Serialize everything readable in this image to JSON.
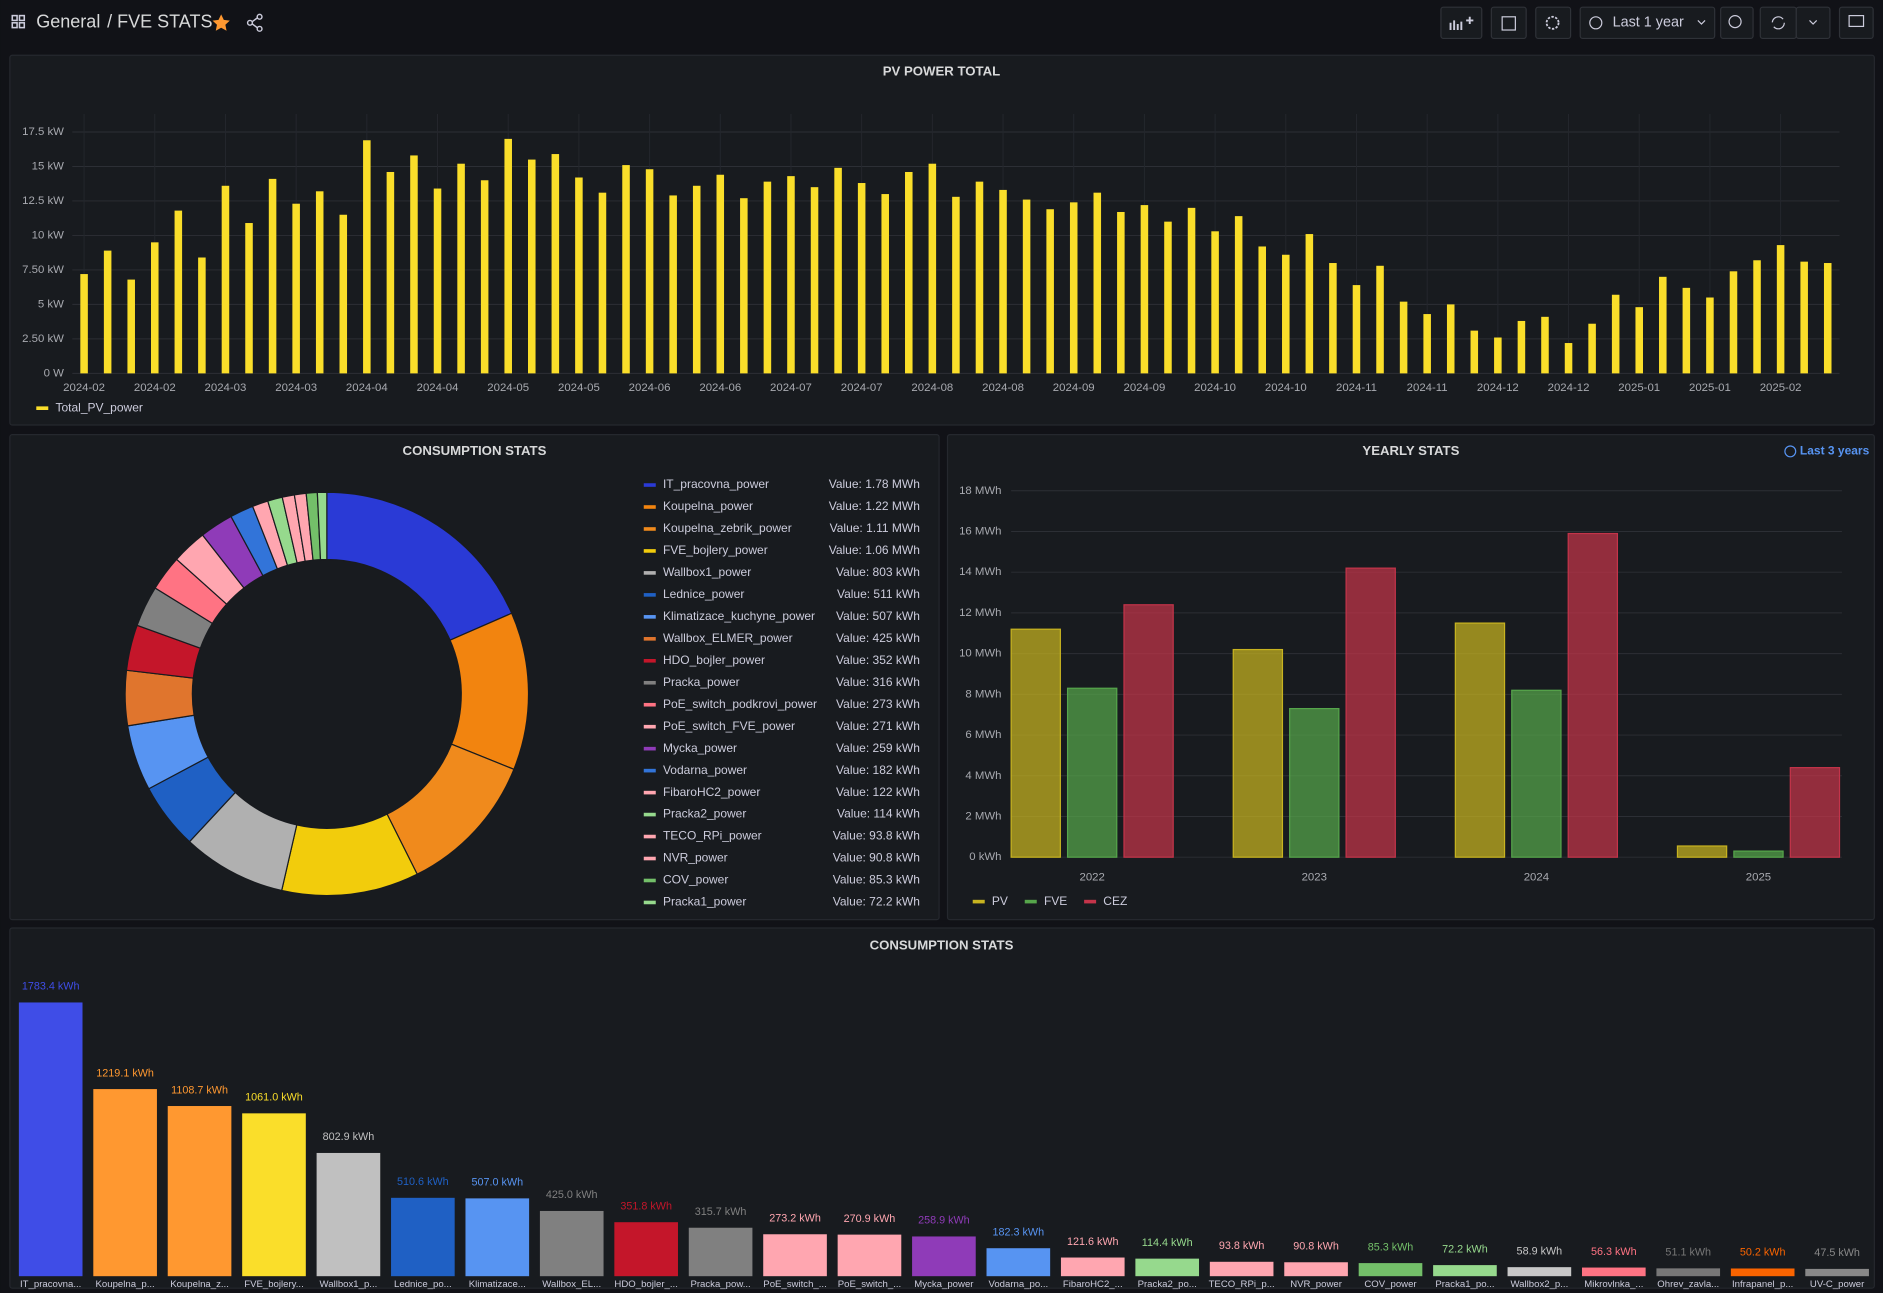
{
  "header": {
    "folder": "General",
    "title": "/ FVE STATS",
    "time_range": "Last 1 year"
  },
  "chart_data": [
    {
      "type": "bar",
      "title": "PV POWER TOTAL",
      "categories": [
        "2024-02",
        null,
        null,
        "2024-02",
        null,
        null,
        "2024-03",
        null,
        null,
        "2024-03",
        null,
        null,
        "2024-04",
        null,
        null,
        "2024-04",
        null,
        null,
        "2024-05",
        null,
        null,
        "2024-05",
        null,
        null,
        "2024-06",
        null,
        null,
        "2024-06",
        null,
        null,
        "2024-07",
        null,
        null,
        "2024-07",
        null,
        null,
        "2024-08",
        null,
        null,
        "2024-08",
        null,
        null,
        "2024-09",
        null,
        null,
        "2024-09",
        null,
        null,
        "2024-10",
        null,
        null,
        "2024-10",
        null,
        null,
        "2024-11",
        null,
        null,
        "2024-11",
        null,
        null,
        "2024-12",
        null,
        null,
        "2024-12",
        null,
        null,
        "2025-01",
        null,
        null,
        "2025-01",
        null,
        null,
        "2025-02",
        null,
        null
      ],
      "series": [
        {
          "name": "Total_PV_power",
          "color": "#fade2a",
          "values": [
            7.2,
            8.9,
            6.8,
            9.5,
            11.8,
            8.4,
            13.6,
            10.9,
            14.1,
            12.3,
            13.2,
            11.5,
            16.9,
            14.6,
            15.8,
            13.4,
            15.2,
            14.0,
            17.0,
            15.5,
            15.9,
            14.2,
            13.1,
            15.1,
            14.8,
            12.9,
            13.6,
            14.4,
            12.7,
            13.9,
            14.3,
            13.5,
            14.9,
            13.8,
            13.0,
            14.6,
            15.2,
            12.8,
            13.9,
            13.3,
            12.6,
            11.9,
            12.4,
            13.1,
            11.7,
            12.2,
            11.0,
            12.0,
            10.3,
            11.4,
            9.2,
            8.6,
            10.1,
            8.0,
            6.4,
            7.8,
            5.2,
            4.3,
            5.0,
            3.1,
            2.6,
            3.8,
            4.1,
            2.2,
            3.6,
            5.7,
            4.8,
            7.0,
            6.2,
            5.5,
            7.4,
            8.2,
            9.3,
            8.1,
            8.0
          ]
        }
      ],
      "ylim": [
        0,
        18.8
      ],
      "yticks": [
        {
          "value": 0,
          "label": "0 W"
        },
        {
          "value": 2.5,
          "label": "2.50 kW"
        },
        {
          "value": 5,
          "label": "5 kW"
        },
        {
          "value": 7.5,
          "label": "7.50 kW"
        },
        {
          "value": 10,
          "label": "10 kW"
        },
        {
          "value": 12.5,
          "label": "12.5 kW"
        },
        {
          "value": 15,
          "label": "15 kW"
        },
        {
          "value": 17.5,
          "label": "17.5 kW"
        }
      ],
      "grid": true
    },
    {
      "type": "pie",
      "title": "CONSUMPTION STATS",
      "donut": true,
      "categories": [
        "IT_pracovna_power",
        "Koupelna_power",
        "Koupelna_zebrik_power",
        "FVE_bojlery_power",
        "Wallbox1_power",
        "Lednice_power",
        "Klimatizace_kuchyne_power",
        "Wallbox_ELMER_power",
        "HDO_bojler_power",
        "Pracka_power",
        "PoE_switch_podkrovi_power",
        "PoE_switch_FVE_power",
        "Mycka_power",
        "Vodarna_power",
        "FibaroHC2_power",
        "Pracka2_power",
        "TECO_RPi_power",
        "NVR_power",
        "COV_power",
        "Pracka1_power"
      ],
      "values": [
        1780,
        1220,
        1110,
        1060,
        803,
        511,
        507,
        425,
        352,
        316,
        273,
        271,
        259,
        182,
        122,
        114,
        93.8,
        90.8,
        85.3,
        72.2
      ],
      "value_labels": [
        "Value: 1.78 MWh",
        "Value: 1.22 MWh",
        "Value: 1.11 MWh",
        "Value: 1.06 MWh",
        "Value: 803 kWh",
        "Value: 511 kWh",
        "Value: 507 kWh",
        "Value: 425 kWh",
        "Value: 352 kWh",
        "Value: 316 kWh",
        "Value: 273 kWh",
        "Value: 271 kWh",
        "Value: 259 kWh",
        "Value: 182 kWh",
        "Value: 122 kWh",
        "Value: 114 kWh",
        "Value: 93.8 kWh",
        "Value: 90.8 kWh",
        "Value: 85.3 kWh",
        "Value: 72.2 kWh"
      ],
      "colors": [
        "#2a3ad6",
        "#f2840f",
        "#f08a1c",
        "#f2cc0c",
        "#b0b0b0",
        "#1f60c4",
        "#5794f2",
        "#e0752d",
        "#c4162a",
        "#808080",
        "#ff7383",
        "#ffa6b0",
        "#8f3bb8",
        "#3274d9",
        "#ffa6b0",
        "#96d98d",
        "#ffa6b0",
        "#ffa6b0",
        "#73bf69",
        "#96d98d"
      ]
    },
    {
      "type": "bar",
      "title": "YEARLY STATS",
      "time_override": "Last 3 years",
      "categories": [
        "2022",
        "2023",
        "2024",
        "2025"
      ],
      "series": [
        {
          "name": "PV",
          "color": "#c8b420",
          "values": [
            11.2,
            10.2,
            11.5,
            0.55
          ]
        },
        {
          "name": "FVE",
          "color": "#56a64b",
          "values": [
            8.3,
            7.3,
            8.2,
            0.3
          ]
        },
        {
          "name": "CEZ",
          "color": "#c4344a",
          "values": [
            12.4,
            14.2,
            15.9,
            4.4
          ]
        }
      ],
      "ylim": [
        0,
        18.4
      ],
      "yticks": [
        {
          "value": 0,
          "label": "0 kWh"
        },
        {
          "value": 2,
          "label": "2 MWh"
        },
        {
          "value": 4,
          "label": "4 MWh"
        },
        {
          "value": 6,
          "label": "6 MWh"
        },
        {
          "value": 8,
          "label": "8 MWh"
        },
        {
          "value": 10,
          "label": "10 MWh"
        },
        {
          "value": 12,
          "label": "12 MWh"
        },
        {
          "value": 14,
          "label": "14 MWh"
        },
        {
          "value": 16,
          "label": "16 MWh"
        },
        {
          "value": 18,
          "label": "18 MWh"
        }
      ],
      "grid": true
    },
    {
      "type": "bar",
      "title": "CONSUMPTION STATS",
      "categories": [
        "IT_pracovna...",
        "Koupelna_p...",
        "Koupelna_z...",
        "FVE_bojlery...",
        "Wallbox1_p...",
        "Lednice_po...",
        "Klimatizace...",
        "Wallbox_EL...",
        "HDO_bojler_...",
        "Pracka_pow...",
        "PoE_switch_...",
        "PoE_switch_...",
        "Mycka_power",
        "Vodarna_po...",
        "FibaroHC2_...",
        "Pracka2_po...",
        "TECO_RPi_p...",
        "NVR_power",
        "COV_power",
        "Pracka1_po...",
        "Wallbox2_p...",
        "Mikrovlnka_...",
        "Ohrev_zavla...",
        "Infrapanel_p...",
        "UV-C_power"
      ],
      "values": [
        1783.4,
        1219.1,
        1108.7,
        1061.0,
        802.9,
        510.6,
        507.0,
        425.0,
        351.8,
        315.7,
        273.2,
        270.9,
        258.9,
        182.3,
        121.6,
        114.4,
        93.8,
        90.8,
        85.3,
        72.2,
        58.9,
        56.3,
        51.1,
        50.2,
        47.5
      ],
      "value_labels": [
        "1783.4 kWh",
        "1219.1 kWh",
        "1108.7 kWh",
        "1061.0 kWh",
        "802.9 kWh",
        "510.6 kWh",
        "507.0 kWh",
        "425.0 kWh",
        "351.8 kWh",
        "315.7 kWh",
        "273.2 kWh",
        "270.9 kWh",
        "258.9 kWh",
        "182.3 kWh",
        "121.6 kWh",
        "114.4 kWh",
        "93.8 kWh",
        "90.8 kWh",
        "85.3 kWh",
        "72.2 kWh",
        "58.9 kWh",
        "56.3 kWh",
        "51.1 kWh",
        "50.2 kWh",
        "47.5 kWh"
      ],
      "colors": [
        "#3f4de7",
        "#ff9830",
        "#ff9830",
        "#fade2a",
        "#c0c0c0",
        "#1f60c4",
        "#5794f2",
        "#808080",
        "#c4162a",
        "#808080",
        "#ffa6b0",
        "#ffa6b0",
        "#8f3bb8",
        "#5794f2",
        "#ffa6b0",
        "#96d98d",
        "#ffa6b0",
        "#ffa6b0",
        "#73bf69",
        "#96d98d",
        "#c7c7c7",
        "#ff7383",
        "#777777",
        "#fa6400",
        "#888888"
      ]
    }
  ]
}
